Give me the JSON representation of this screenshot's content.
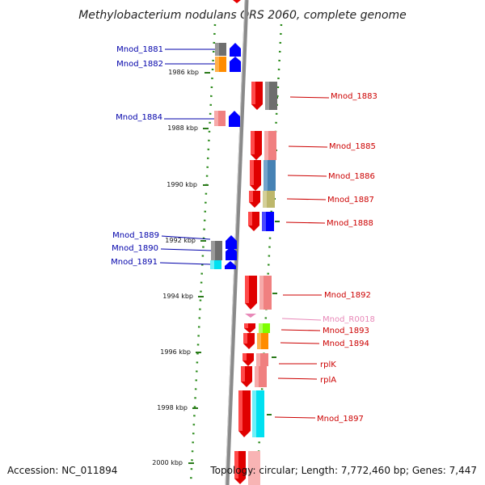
{
  "title": "Methylobacterium nodulans ORS 2060, complete genome",
  "footer": {
    "accession": "Accession: NC_011894",
    "topology": "Topology: circular; Length: 7,772,460 bp; Genes: 7,447"
  },
  "colors": {
    "forward_label": "#0000aa",
    "reverse_label": "#cc0000",
    "rna_label": "#e888b8",
    "axis": "#888888",
    "tick": "#2a7a1a"
  },
  "kbp_ticks": [
    "1986 kbp",
    "1988 kbp",
    "1990 kbp",
    "1992 kbp",
    "1994 kbp",
    "1996 kbp",
    "1998 kbp",
    "2000 kbp"
  ],
  "genes_forward": [
    {
      "name": "Mnod_1881",
      "color": "#6e6e6e"
    },
    {
      "name": "Mnod_1882",
      "color": "#ff8c00"
    },
    {
      "name": "Mnod_1884",
      "color": "#f08080"
    },
    {
      "name": "Mnod_1889",
      "color": "#6e6e6e"
    },
    {
      "name": "Mnod_1890",
      "color": "#6e6e6e"
    },
    {
      "name": "Mnod_1891",
      "color": "#00e0f0"
    }
  ],
  "genes_reverse": [
    {
      "name": "Mnod_1883",
      "color": "#6e6e6e"
    },
    {
      "name": "Mnod_1885",
      "color": "#f08080"
    },
    {
      "name": "Mnod_1886",
      "color": "#4682b4"
    },
    {
      "name": "Mnod_1887",
      "color": "#bdb76b"
    },
    {
      "name": "Mnod_1888",
      "color": "#0000ff"
    },
    {
      "name": "Mnod_1892",
      "color": "#f08080"
    },
    {
      "name": "Mnod_R0018",
      "color": "#e888b8"
    },
    {
      "name": "Mnod_1893",
      "color": "#7fff00"
    },
    {
      "name": "Mnod_1894",
      "color": "#ff8c00"
    },
    {
      "name": "rplK",
      "color": "#f08080"
    },
    {
      "name": "rplA",
      "color": "#f08080"
    },
    {
      "name": "Mnod_1897",
      "color": "#00e0f0"
    }
  ]
}
